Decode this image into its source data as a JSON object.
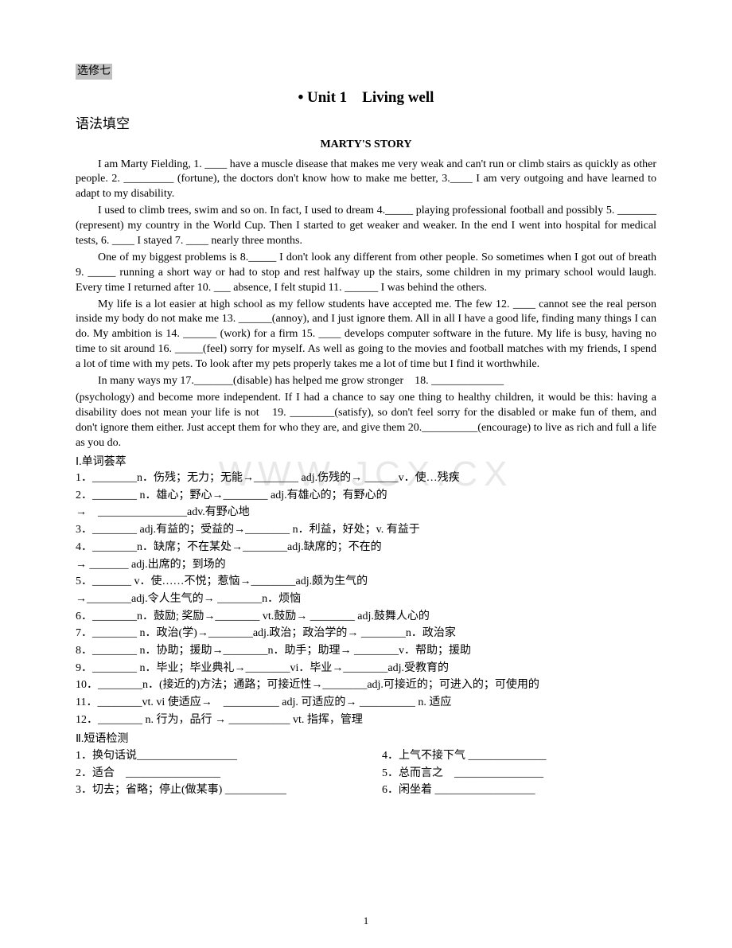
{
  "watermark": "WWW.JCX.CX",
  "header_tag": "选修七",
  "unit_title_bullet": "•",
  "unit_title": "Unit 1　Living well",
  "section_grammar": "语法填空",
  "story_title": "MARTY'S STORY",
  "para1_a": "I am Marty Fielding, 1. ____ have a muscle disease that makes me very weak and can't run or climb stairs as quickly as other people. 2. _________ (fortune), the doctors don't know how to make me better, 3.____ I am very outgoing and have learned to adapt to my disability.",
  "para2_a": "I used to climb trees, swim and so on. In fact, I used to dream 4._____ playing professional football and possibly 5. _______ (represent) my country in the World Cup. Then I started to get weaker and weaker. In the end I went into hospital for medical tests, 6. ____ I stayed 7. ____ nearly three months.",
  "para3_a": "One of my biggest problems is 8._____ I don't look any different from other people. So sometimes when I got out of breath 9. _____ running a short way or had to stop and rest halfway up the stairs, some children in my primary school would laugh. Every time I returned after 10. ___ absence, I felt stupid 11. ______ I was behind the others.",
  "para4_a": "My life is a lot easier at high school as my fellow students have accepted me. The few 12. ____ cannot see the real person inside my body do not make me 13. ______(annoy), and I just ignore them. All in all I have a good life, finding many things I can do. My ambition is 14. ______ (work) for a firm 15. ____ develops computer software in the future. My life is busy, having no time to sit around 16. _____(feel) sorry for myself. As well as going to the movies and football matches with my friends, I spend a lot of time with my pets. To look after my pets properly takes me a lot of time but I find it worthwhile.",
  "para5_a": "In many ways my 17._______(disable) has helped me grow stronger　18. _____________",
  "para5_b": "(psychology) and become more independent. If I had a chance to say one thing to healthy children, it would be this: having a disability does not mean your life is not　19. ________(satisfy), so don't feel sorry for the disabled or make fun of them, and don't ignore them either. Just accept them for who they are, and give them 20.__________(encourage) to live as rich and full a life as you do.",
  "sec1_title": "Ⅰ.单词荟萃",
  "v1": "1．________n．伤残；无力；无能→________ adj.伤残的→ ______v．使…残疾",
  "v2": "2．________ n．雄心；野心→________ adj.有雄心的；有野心的",
  "v2b": "→　________________adv.有野心地",
  "v3": "3．________ adj.有益的；受益的→________ n．利益，好处；v. 有益于",
  "v4": "4．________n．缺席；不在某处→________adj.缺席的；不在的",
  "v4b": "→ _______ adj.出席的；到场的",
  "v5": "5．_______ v．使……不悦；惹恼→________adj.颇为生气的",
  "v5b": "→________adj.令人生气的→ ________n．烦恼",
  "v6": "6．________n．鼓励; 奖励→________ vt.鼓励→ ________ adj.鼓舞人心的",
  "v7": "7．________ n．政治(学)→________adj.政治；政治学的→ ________n．政治家",
  "v8": "8．________ n．协助；援助→________n．助手；助理→ ________v．帮助；援助",
  "v9": "9．________ n．毕业；毕业典礼→________vi．毕业→________adj.受教育的",
  "v10": "10．________n．(接近的)方法；通路；可接近性→________adj.可接近的；可进入的；可使用的",
  "v11": "11．________vt. vi 使适应→　__________ adj. 可适应的→ __________ n. 适应",
  "v12": "12．________ n. 行为，品行 → ___________ vt. 指挥，管理",
  "sec2_title": "Ⅱ.短语检测",
  "p1": "1．换句话说__________________",
  "p2": "2．适合　_________________",
  "p3": "3．切去；省略；停止(做某事) ___________",
  "p4": "4．上气不接下气 ______________",
  "p5": "5．总而言之　________________",
  "p6": "6．闲坐着 __________________",
  "page_num": "1"
}
